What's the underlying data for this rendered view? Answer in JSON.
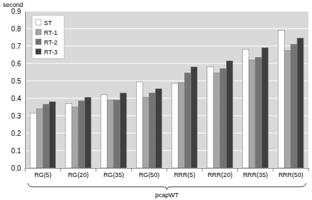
{
  "chart_data": {
    "type": "bar",
    "y_label": "second",
    "x_label": "pcapWT",
    "categories": [
      "RG(5)",
      "RG(20)",
      "RG(35)",
      "RG(50)",
      "RRR(5)",
      "RRR(20)",
      "RRR(35)",
      "RRR(50)"
    ],
    "series": [
      {
        "name": "ST",
        "color": "#ffffff",
        "values": [
          0.315,
          0.37,
          0.42,
          0.495,
          0.485,
          0.58,
          0.68,
          0.79
        ]
      },
      {
        "name": "RT-1",
        "color": "#a6a6a6",
        "values": [
          0.34,
          0.35,
          0.39,
          0.405,
          0.49,
          0.545,
          0.62,
          0.675
        ]
      },
      {
        "name": "RT-2",
        "color": "#737373",
        "values": [
          0.365,
          0.385,
          0.39,
          0.43,
          0.545,
          0.57,
          0.635,
          0.71
        ]
      },
      {
        "name": "RT-3",
        "color": "#3f3f3f",
        "values": [
          0.38,
          0.405,
          0.43,
          0.455,
          0.58,
          0.615,
          0.69,
          0.745
        ]
      }
    ],
    "ylim": [
      0,
      0.9
    ],
    "yticks": [
      {
        "value": 0,
        "label": "0.0"
      },
      0.1,
      0.2,
      0.3,
      0.4,
      0.5,
      0.6,
      0.7,
      0.8,
      0.9
    ],
    "grid": true,
    "legend": "top-left"
  }
}
